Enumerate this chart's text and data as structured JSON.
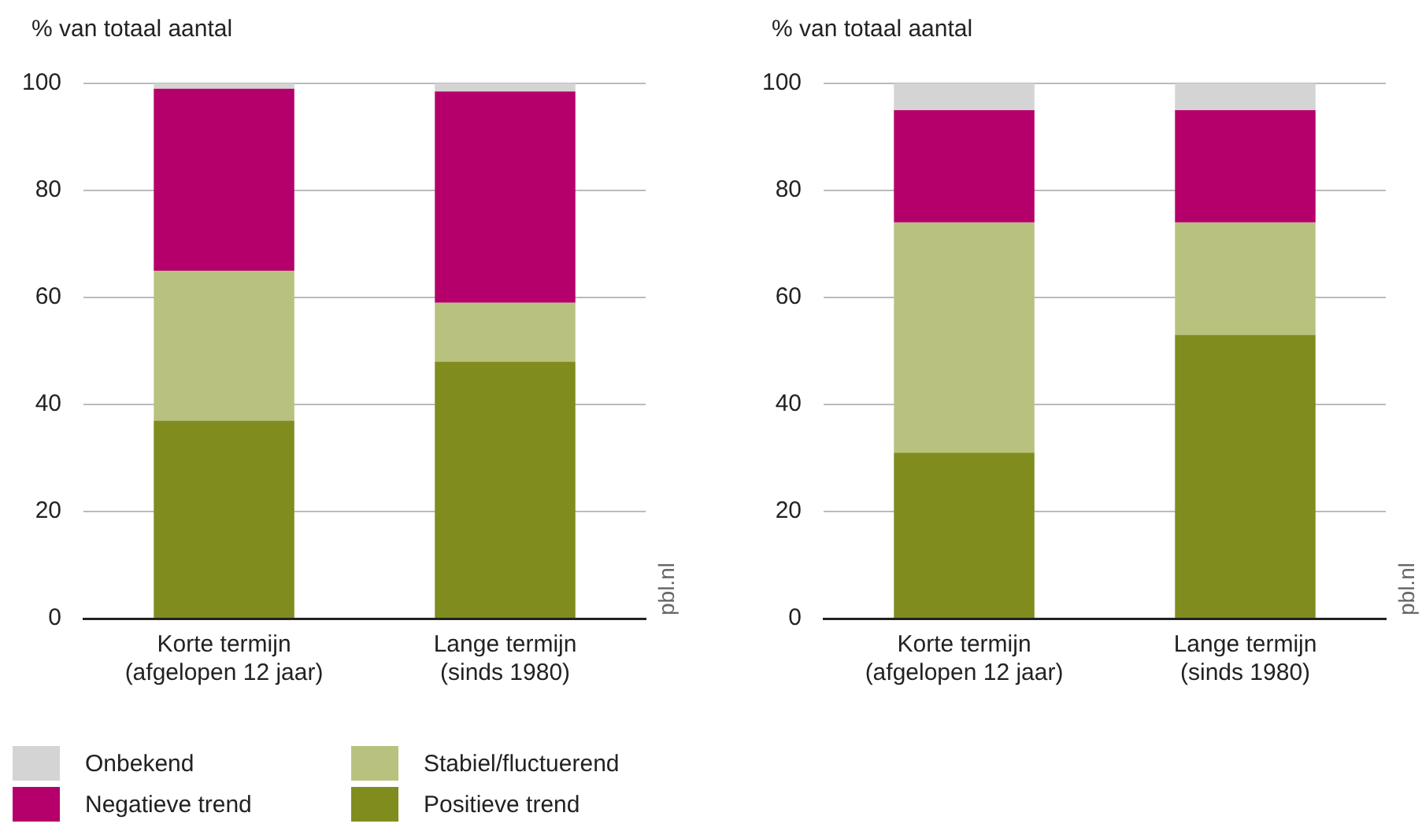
{
  "chart_data": [
    {
      "type": "bar",
      "ylabel": "% van totaal aantal",
      "categories": [
        "Korte termijn\n(afgelopen 12 jaar)",
        "Lange termijn\n(sinds 1980)"
      ],
      "stacked": true,
      "ylim": [
        0,
        100
      ],
      "yticks": [
        0,
        20,
        40,
        60,
        80,
        100
      ],
      "grid": "y",
      "legend": "bottom",
      "annotations": [
        "pbl.nl"
      ],
      "series": [
        {
          "name": "Positieve trend",
          "color": "#808c1e",
          "values": [
            37,
            48
          ]
        },
        {
          "name": "Stabiel/fluctuerend",
          "color": "#b9c17f",
          "values": [
            28,
            11
          ]
        },
        {
          "name": "Negatieve trend",
          "color": "#b5006b",
          "values": [
            34,
            39.5
          ]
        },
        {
          "name": "Onbekend",
          "color": "#d4d4d4",
          "values": [
            1,
            1.5
          ]
        }
      ]
    },
    {
      "type": "bar",
      "ylabel": "% van totaal aantal",
      "categories": [
        "Korte termijn\n(afgelopen 12 jaar)",
        "Lange termijn\n(sinds 1980)"
      ],
      "stacked": true,
      "ylim": [
        0,
        100
      ],
      "yticks": [
        0,
        20,
        40,
        60,
        80,
        100
      ],
      "grid": "y",
      "annotations": [
        "pbl.nl"
      ],
      "series": [
        {
          "color": "#808c1e",
          "values": [
            31,
            53
          ]
        },
        {
          "color": "#b9c17f",
          "values": [
            43,
            21
          ]
        },
        {
          "color": "#b5006b",
          "values": [
            21,
            21
          ]
        },
        {
          "color": "#d4d4d4",
          "values": [
            5,
            5
          ]
        }
      ]
    }
  ]
}
